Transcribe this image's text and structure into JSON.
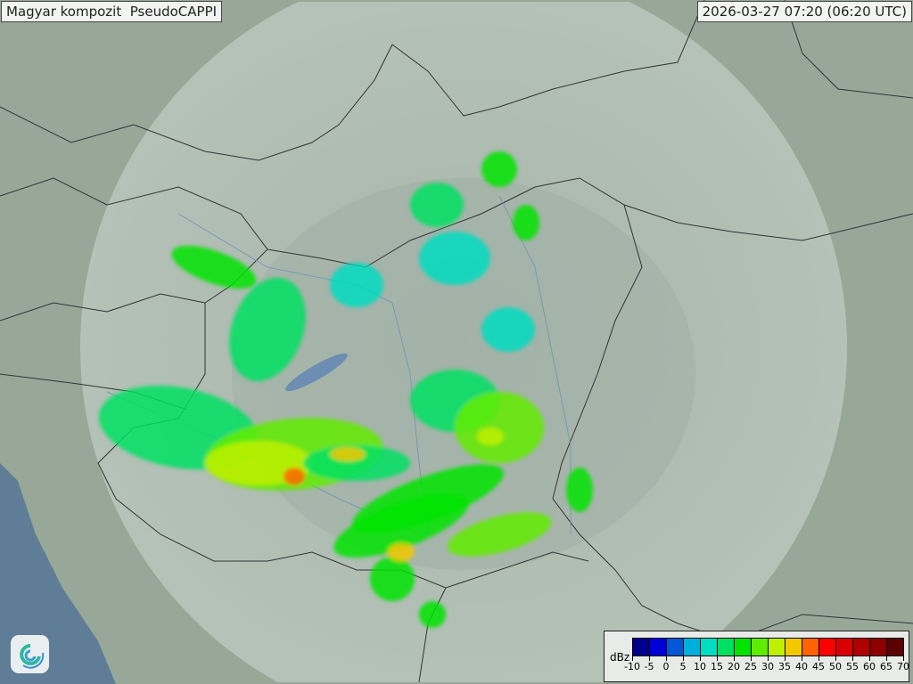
{
  "header": {
    "title": "Magyar kompozit  PseudoCAPPI",
    "timestamp": "2026-03-27 07:20 (06:20 UTC)"
  },
  "legend": {
    "unit": "dBz",
    "ticks": [
      "-10",
      "-5",
      "0",
      "5",
      "10",
      "15",
      "20",
      "25",
      "30",
      "35",
      "40",
      "45",
      "50",
      "55",
      "60",
      "65",
      "70"
    ],
    "colors": [
      "#00008c",
      "#0000d6",
      "#0058d4",
      "#00b0dc",
      "#00dcc0",
      "#00e060",
      "#00e400",
      "#60ec00",
      "#c0f000",
      "#f4c800",
      "#ff6400",
      "#ff0000",
      "#d80000",
      "#b00000",
      "#8c0000",
      "#5c0000"
    ]
  },
  "logo": {
    "icon": "swirl-logo-icon",
    "colors": [
      "#2fb7a0",
      "#3a8fd0"
    ]
  }
}
